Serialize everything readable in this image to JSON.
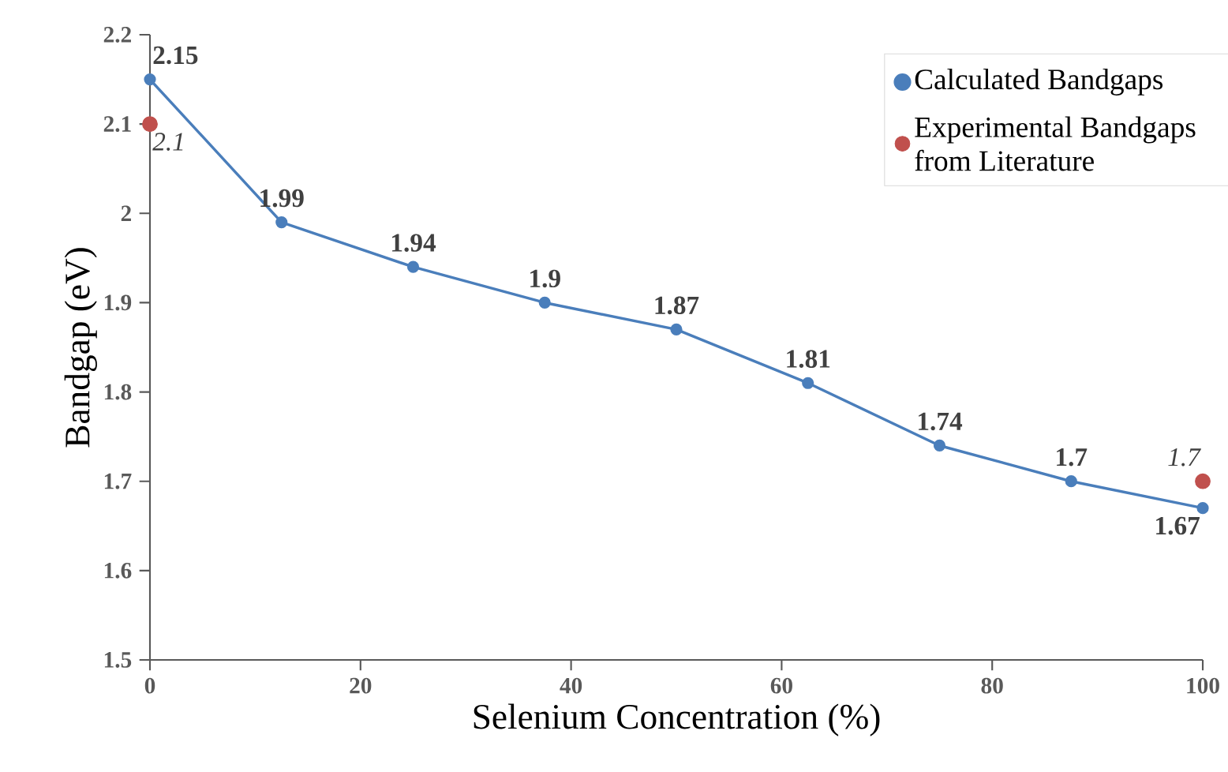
{
  "chart_data": {
    "type": "line",
    "xlabel": "Selenium Concentration (%)",
    "ylabel": "Bandgap (eV)",
    "xlim": [
      0,
      100
    ],
    "xticks": [
      0,
      20,
      40,
      60,
      80,
      100
    ],
    "ylim": [
      1.5,
      2.2
    ],
    "yticks": [
      1.5,
      1.6,
      1.7,
      1.8,
      1.9,
      2,
      2.1,
      2.2
    ],
    "grid": false,
    "legend": "top right",
    "marker": "circle",
    "line_style": "solid",
    "series": [
      {
        "name": "Calculated Bandgaps",
        "color": "#4a7ebb",
        "x": [
          0,
          12.5,
          25,
          37.5,
          50,
          62.5,
          75,
          87.5,
          100
        ],
        "values": [
          2.15,
          1.99,
          1.94,
          1.9,
          1.87,
          1.81,
          1.74,
          1.7,
          1.67
        ],
        "value_labels": [
          "2.15",
          "1.99",
          "1.94",
          "1.9",
          "1.87",
          "1.81",
          "1.74",
          "1.7",
          "1.67"
        ]
      },
      {
        "name": "Experimental Bandgaps from Literature",
        "type": "scatter",
        "color": "#c0504d",
        "x": [
          0,
          100
        ],
        "values": [
          2.1,
          1.7
        ],
        "value_labels": [
          "2.1",
          "1.7"
        ]
      }
    ]
  }
}
